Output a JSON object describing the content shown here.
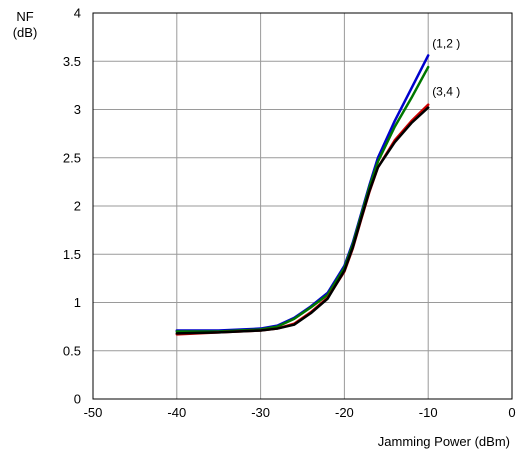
{
  "chart_data": {
    "type": "line",
    "title": "",
    "xlabel": "Jamming Power (dBm)",
    "ylabel_line1": "NF",
    "ylabel_line2": "(dB)",
    "xlim": [
      -50,
      0
    ],
    "ylim": [
      0,
      4
    ],
    "xticks": [
      -50,
      -40,
      -30,
      -20,
      -10,
      0
    ],
    "yticks": [
      0,
      0.5,
      1,
      1.5,
      2,
      2.5,
      3,
      3.5,
      4
    ],
    "grid": true,
    "legend": "none",
    "annotations": [
      {
        "text": "(1,2 )",
        "x": -10,
        "y": 3.55
      },
      {
        "text": "(3,4 )",
        "x": -10,
        "y": 3.05
      }
    ],
    "series": [
      {
        "color": "#0000cc",
        "x": [
          -40,
          -35,
          -30,
          -28,
          -26,
          -24,
          -22,
          -20,
          -19,
          -18,
          -17,
          -16,
          -14,
          -12,
          -10
        ],
        "y": [
          0.71,
          0.71,
          0.73,
          0.76,
          0.84,
          0.96,
          1.1,
          1.38,
          1.62,
          1.92,
          2.22,
          2.5,
          2.88,
          3.22,
          3.56
        ]
      },
      {
        "color": "#007700",
        "x": [
          -40,
          -35,
          -30,
          -28,
          -26,
          -24,
          -22,
          -20,
          -19,
          -18,
          -17,
          -16,
          -14,
          -12,
          -10
        ],
        "y": [
          0.7,
          0.7,
          0.72,
          0.75,
          0.83,
          0.95,
          1.08,
          1.36,
          1.6,
          1.9,
          2.2,
          2.46,
          2.82,
          3.12,
          3.44
        ]
      },
      {
        "color": "#cc0000",
        "x": [
          -40,
          -35,
          -30,
          -28,
          -26,
          -24,
          -22,
          -20,
          -19,
          -18,
          -17,
          -16,
          -14,
          -12,
          -10
        ],
        "y": [
          0.67,
          0.69,
          0.71,
          0.73,
          0.78,
          0.9,
          1.05,
          1.32,
          1.56,
          1.86,
          2.15,
          2.4,
          2.68,
          2.88,
          3.05
        ]
      },
      {
        "color": "#000000",
        "x": [
          -40,
          -35,
          -30,
          -28,
          -26,
          -24,
          -22,
          -20,
          -19,
          -18,
          -17,
          -16,
          -14,
          -12,
          -10
        ],
        "y": [
          0.68,
          0.69,
          0.71,
          0.73,
          0.77,
          0.89,
          1.04,
          1.33,
          1.57,
          1.87,
          2.16,
          2.4,
          2.66,
          2.86,
          3.02
        ]
      }
    ]
  }
}
